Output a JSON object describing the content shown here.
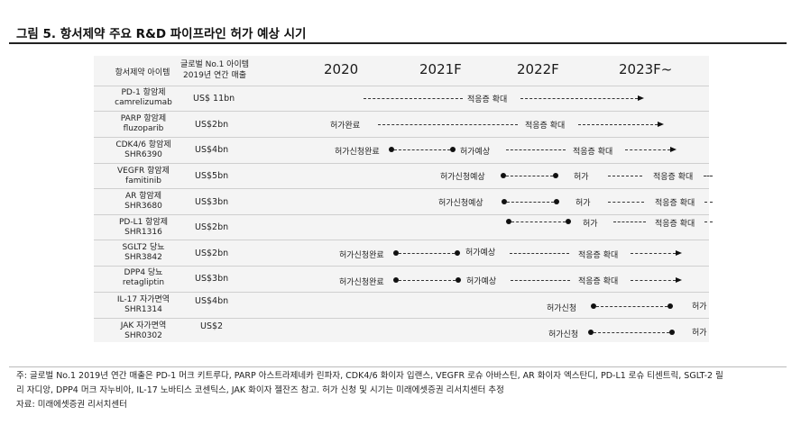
{
  "figure": {
    "title": "그림 5. 항서제약 주요 R&D 파이프라인 허가 예상 시기"
  },
  "table": {
    "header": {
      "item": "항서제약 아이템",
      "sales_line1": "글로벌 No.1 아이템",
      "sales_line2": "2019년 연간 매출"
    },
    "years": [
      "2020",
      "2021F",
      "2022F",
      "2023F~"
    ],
    "rows": [
      {
        "name": "PD-1 항암제",
        "code": "camrelizumab",
        "sales": "US$ 11bn",
        "timeline": {
          "approval_done": "",
          "filing_done": "",
          "filing": "",
          "approval_exp": "",
          "approval": "",
          "expand1": "적응증 확대",
          "expand2": ""
        }
      },
      {
        "name": "PARP 항암제",
        "code": "fluzoparib",
        "sales": "US$2bn",
        "timeline": {
          "approval_done": "허가완료",
          "filing_done": "",
          "filing": "",
          "approval_exp": "",
          "approval": "",
          "expand1": "적응증 확대",
          "expand2": ""
        }
      },
      {
        "name": "CDK4/6 항암제",
        "code": "SHR6390",
        "sales": "US$4bn",
        "timeline": {
          "approval_done": "",
          "filing_done": "허가신청완료",
          "filing": "",
          "approval_exp": "허가예상",
          "approval": "",
          "expand1": "적응증 확대",
          "expand2": ""
        }
      },
      {
        "name": "VEGFR 항암제",
        "code": "famitinib",
        "sales": "US$5bn",
        "timeline": {
          "approval_done": "",
          "filing_done": "",
          "filing": "허가신청예상",
          "approval_exp": "",
          "approval": "허가",
          "expand1": "",
          "expand2": "적응증 확대"
        }
      },
      {
        "name": "AR 항암제",
        "code": "SHR3680",
        "sales": "US$3bn",
        "timeline": {
          "approval_done": "",
          "filing_done": "",
          "filing": "허가신청예상",
          "approval_exp": "",
          "approval": "허가",
          "expand1": "",
          "expand2": "적응증 확대"
        }
      },
      {
        "name": "PD-L1 항암제",
        "code": "SHR1316",
        "sales": "US$2bn",
        "timeline": {
          "approval_done": "",
          "filing_done": "",
          "filing": "",
          "approval_exp": "",
          "approval": "허가",
          "expand1": "",
          "expand2": "적응증 확대"
        }
      },
      {
        "name": "SGLT2 당뇨",
        "code": "SHR3842",
        "sales": "US$2bn",
        "timeline": {
          "approval_done": "",
          "filing_done": "허가신청완료",
          "filing": "",
          "approval_exp": "허가예상",
          "approval": "",
          "expand1": "적응증 확대",
          "expand2": ""
        }
      },
      {
        "name": "DPP4 당뇨",
        "code": "retagliptin",
        "sales": "US$3bn",
        "timeline": {
          "approval_done": "",
          "filing_done": "허가신청완료",
          "filing": "",
          "approval_exp": "허가예상",
          "approval": "",
          "expand1": "적응증 확대",
          "expand2": ""
        }
      },
      {
        "name": "IL-17 자가면역",
        "code": "SHR1314",
        "sales": "US$4bn",
        "timeline": {
          "approval_done": "",
          "filing_done": "",
          "filing": "허가신청",
          "approval_exp": "",
          "approval": "허가",
          "expand1": "",
          "expand2": ""
        }
      },
      {
        "name": "JAK 자가면역",
        "code": "SHR0302",
        "sales": "US$2",
        "timeline": {
          "approval_done": "",
          "filing_done": "",
          "filing": "허가신청",
          "approval_exp": "",
          "approval": "허가",
          "expand1": "",
          "expand2": ""
        }
      }
    ]
  },
  "notes": {
    "note_line1": "주: 글로벌 No.1 2019년 연간 매출은 PD-1 머크 키트루다, PARP 아스트라제네카 린파자, CDK4/6 화이자 입랜스, VEGFR 로슈 아바스틴, AR 화이자 엑스탄디, PD-L1 로슈 티센트릭, SGLT-2 릴",
    "note_line2": "리 자디앙, DPP4 머크 자누비아, IL-17 노바티스 코센틱스, JAK 화이자 젤잔즈 참고. 허가 신청 및 시기는 미래에셋증권 리서치센터 추정",
    "source": "자료: 미래에셋증권 리서치센터"
  }
}
